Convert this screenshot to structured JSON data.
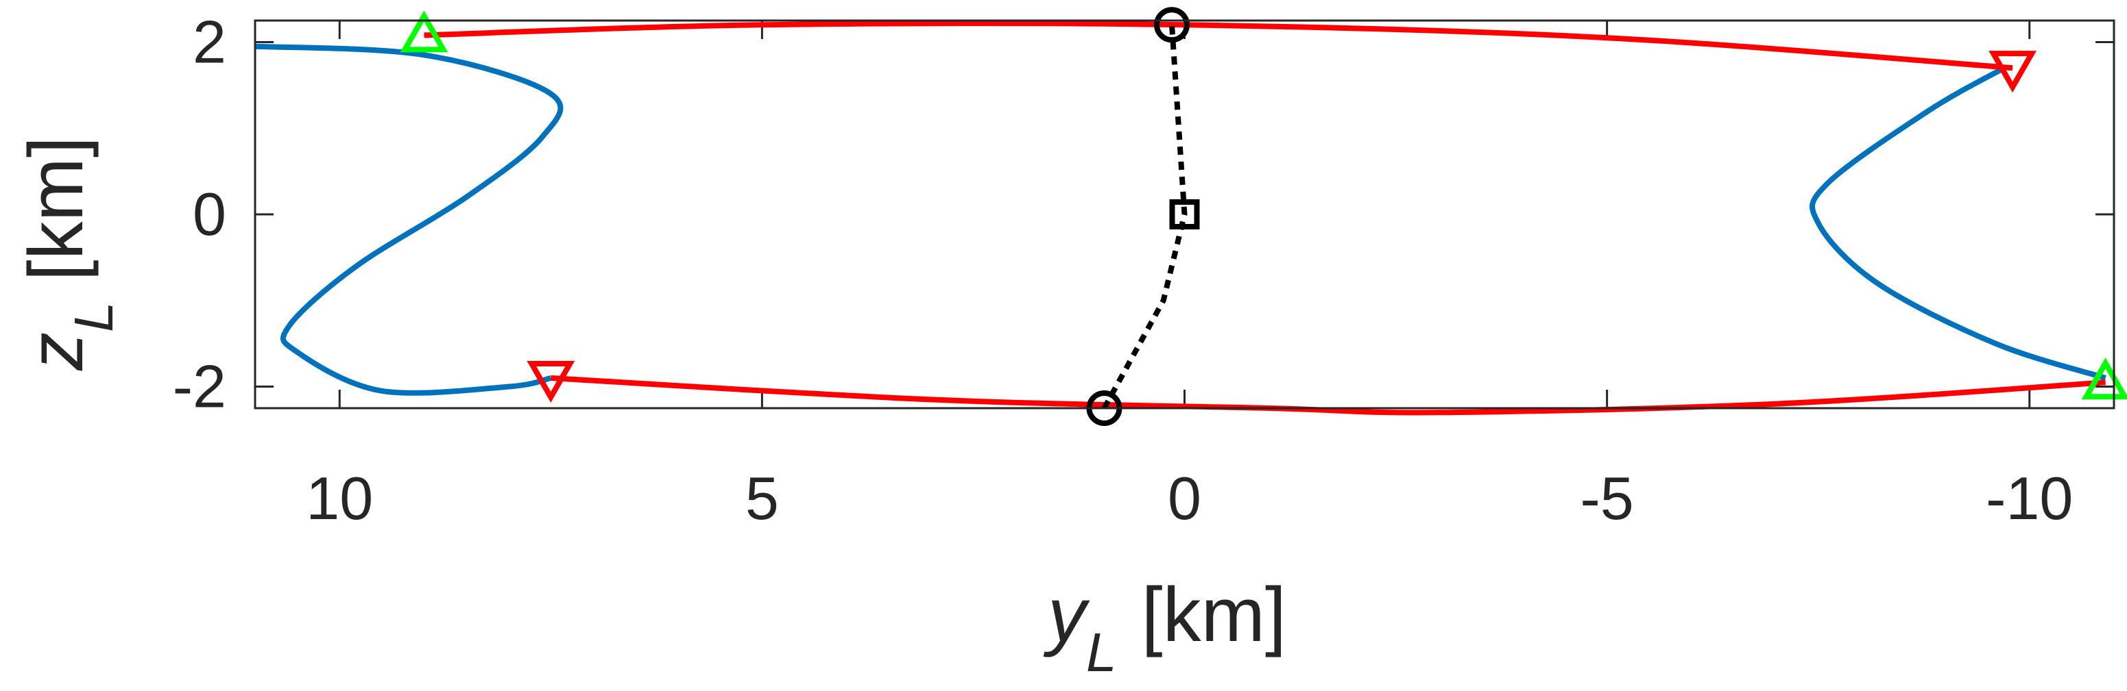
{
  "chart_data": {
    "type": "line",
    "xlabel": {
      "var": "y",
      "sub": "L",
      "unit": "[km]"
    },
    "ylabel": {
      "var": "z",
      "sub": "L",
      "unit": "[km]"
    },
    "xlim": [
      11.0,
      -11.0
    ],
    "ylim": [
      -2.25,
      2.25
    ],
    "x_reversed": true,
    "xticks": [
      10,
      5,
      0,
      -5,
      -10
    ],
    "xtick_labels": [
      "10",
      "5",
      "0",
      "-5",
      "-10"
    ],
    "yticks": [
      -2,
      0,
      2
    ],
    "ytick_labels": [
      "-2",
      "0",
      "2"
    ],
    "grid": false,
    "series": [
      {
        "color": "#0072BD",
        "style": "solid",
        "x": [
          11.0,
          9.0,
          7.5,
          7.6,
          8.5,
          9.8,
          10.6,
          10.5,
          9.5,
          8.0,
          7.5
        ],
        "y": [
          1.95,
          1.85,
          1.4,
          0.9,
          0.2,
          -0.6,
          -1.3,
          -1.6,
          -2.05,
          -2.0,
          -1.9
        ]
      },
      {
        "color": "#0072BD",
        "style": "solid",
        "x": [
          -9.7,
          -8.8,
          -7.6,
          -7.5,
          -8.2,
          -9.6,
          -10.9
        ],
        "y": [
          1.7,
          1.2,
          0.35,
          -0.1,
          -0.8,
          -1.5,
          -1.9
        ]
      },
      {
        "color": "#FF0000",
        "style": "solid",
        "x": [
          9.0,
          5.0,
          0.0,
          -5.0,
          -9.8
        ],
        "y": [
          2.08,
          2.2,
          2.2,
          2.05,
          1.7
        ]
      },
      {
        "color": "#FF0000",
        "style": "solid",
        "x": [
          7.5,
          3.0,
          -1.0,
          -3.0,
          -7.0,
          -10.9
        ],
        "y": [
          -1.9,
          -2.15,
          -2.25,
          -2.3,
          -2.2,
          -1.95
        ]
      },
      {
        "color": "#000000",
        "style": "dotted",
        "x": [
          0.95,
          0.25,
          0.0,
          0.15
        ],
        "y": [
          -2.25,
          -1.0,
          0.0,
          2.2
        ]
      }
    ],
    "markers": [
      {
        "shape": "triangle-up",
        "color": "#00FF00",
        "x": 9.0,
        "y": 2.08
      },
      {
        "shape": "triangle-up",
        "color": "#00FF00",
        "x": -10.9,
        "y": -1.95
      },
      {
        "shape": "triangle-down",
        "color": "#FF0000",
        "x": -9.8,
        "y": 1.7
      },
      {
        "shape": "triangle-down",
        "color": "#FF0000",
        "x": 7.5,
        "y": -1.9
      },
      {
        "shape": "circle",
        "color": "#000000",
        "x": 0.15,
        "y": 2.2
      },
      {
        "shape": "circle",
        "color": "#000000",
        "x": 0.95,
        "y": -2.25
      },
      {
        "shape": "square",
        "color": "#000000",
        "x": 0.0,
        "y": 0.0
      }
    ]
  }
}
